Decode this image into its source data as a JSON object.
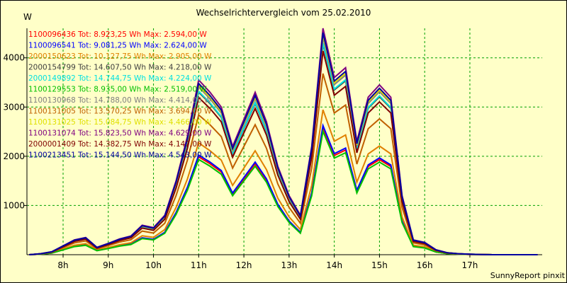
{
  "chart_data": {
    "type": "line",
    "title": "Wechselrichtervergleich vom 25.02.2010",
    "ylabel": "W",
    "xlabel": "",
    "footer": "SunnyReport pinxit",
    "x_tick_labels": [
      "8h",
      "9h",
      "10h",
      "11h",
      "12h",
      "13h",
      "14h",
      "15h",
      "16h",
      "17h"
    ],
    "x_tick_values": [
      8,
      9,
      10,
      11,
      12,
      13,
      14,
      15,
      16,
      17
    ],
    "y_tick_values": [
      1000,
      2000,
      3000,
      4000
    ],
    "xlim": [
      7.2,
      18.6
    ],
    "ylim": [
      0,
      4600
    ],
    "grid": true,
    "x": [
      7.25,
      7.5,
      7.75,
      8.0,
      8.25,
      8.5,
      8.75,
      9.0,
      9.25,
      9.5,
      9.75,
      10.0,
      10.25,
      10.5,
      10.75,
      11.0,
      11.25,
      11.5,
      11.75,
      12.0,
      12.25,
      12.5,
      12.75,
      13.0,
      13.25,
      13.5,
      13.75,
      14.0,
      14.25,
      14.5,
      14.75,
      15.0,
      15.25,
      15.5,
      15.75,
      16.0,
      16.25,
      16.5,
      16.75,
      17.0,
      17.25,
      17.5,
      17.75,
      18.0,
      18.25,
      18.5
    ],
    "series": [
      {
        "name": "1100096436 Tot: 8.923,25 Wh Max: 2.594,00 W",
        "color": "#ff0000",
        "scale": 0.56
      },
      {
        "name": "1100096541 Tot: 9.081,25 Wh Max: 2.624,00 W",
        "color": "#0000ff",
        "scale": 0.57
      },
      {
        "name": "2000150623 Tot: 10.127,75 Wh Max: 2.905,00 W",
        "color": "#e08000",
        "scale": 0.64
      },
      {
        "name": "2000154799 Tot: 14.607,50 Wh Max: 4.218,00 W",
        "color": "#404040",
        "scale": 0.93
      },
      {
        "name": "2000149892 Tot: 14.744,75 Wh Max: 4.224,00 W",
        "color": "#00e0e0",
        "scale": 0.935
      },
      {
        "name": "1100129553 Tot: 8.935,00 Wh Max: 2.519,00 W",
        "color": "#00c000",
        "scale": 0.545
      },
      {
        "name": "1100130968 Tot: 14.788,00 Wh Max: 4.414,00 W",
        "color": "#808080",
        "scale": 0.96
      },
      {
        "name": "1100131005 Tot: 13.570,25 Wh Max: 3.694,00 W",
        "color": "#c06000",
        "scale": 0.8
      },
      {
        "name": "1100131025 Tot: 15.084,75 Wh Max: 4.466,00 W",
        "color": "#e0e000",
        "scale": 0.97
      },
      {
        "name": "1100131074 Tot: 15.823,50 Wh Max: 4.629,00 W",
        "color": "#800080",
        "scale": 1.0
      },
      {
        "name": "2000001409 Tot: 14.382,75 Wh Max: 4.147,00 W",
        "color": "#800000",
        "scale": 0.9
      },
      {
        "name": "1100213451 Tot: 15.144,50 Wh Max: 4.543,00 W",
        "color": "#0000a0",
        "scale": 0.98
      }
    ],
    "base_profile": [
      0,
      20,
      60,
      180,
      300,
      350,
      150,
      230,
      320,
      380,
      600,
      550,
      800,
      1500,
      2400,
      3550,
      3300,
      3000,
      2200,
      2750,
      3300,
      2700,
      1800,
      1200,
      800,
      2200,
      4600,
      3600,
      3800,
      2300,
      3200,
      3450,
      3200,
      1200,
      300,
      250,
      100,
      40,
      20,
      10,
      5,
      0,
      0,
      0,
      0,
      0
    ]
  }
}
